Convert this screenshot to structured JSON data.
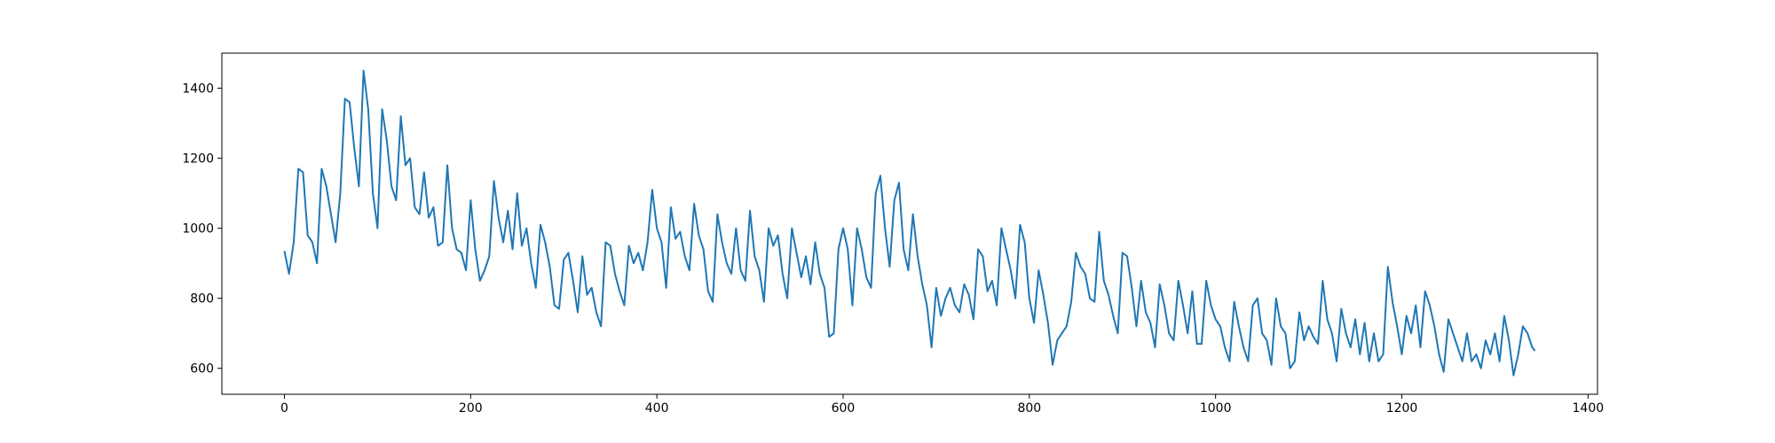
{
  "chart_data": {
    "type": "line",
    "color": "#1f77b4",
    "x": [
      0,
      5,
      10,
      15,
      20,
      25,
      30,
      35,
      40,
      45,
      50,
      55,
      60,
      65,
      70,
      75,
      80,
      85,
      90,
      95,
      100,
      105,
      110,
      115,
      120,
      125,
      130,
      135,
      140,
      145,
      150,
      155,
      160,
      165,
      170,
      175,
      180,
      185,
      190,
      195,
      200,
      205,
      210,
      215,
      220,
      225,
      230,
      235,
      240,
      245,
      250,
      255,
      260,
      265,
      270,
      275,
      280,
      285,
      290,
      295,
      300,
      305,
      310,
      315,
      320,
      325,
      330,
      335,
      340,
      345,
      350,
      355,
      360,
      365,
      370,
      375,
      380,
      385,
      390,
      395,
      400,
      405,
      410,
      415,
      420,
      425,
      430,
      435,
      440,
      445,
      450,
      455,
      460,
      465,
      470,
      475,
      480,
      485,
      490,
      495,
      500,
      505,
      510,
      515,
      520,
      525,
      530,
      535,
      540,
      545,
      550,
      555,
      560,
      565,
      570,
      575,
      580,
      585,
      590,
      595,
      600,
      605,
      610,
      615,
      620,
      625,
      630,
      635,
      640,
      645,
      650,
      655,
      660,
      665,
      670,
      675,
      680,
      685,
      690,
      695,
      700,
      705,
      710,
      715,
      720,
      725,
      730,
      735,
      740,
      745,
      750,
      755,
      760,
      765,
      770,
      775,
      780,
      785,
      790,
      795,
      800,
      805,
      810,
      815,
      820,
      825,
      830,
      835,
      840,
      845,
      850,
      855,
      860,
      865,
      870,
      875,
      880,
      885,
      890,
      895,
      900,
      905,
      910,
      915,
      920,
      925,
      930,
      935,
      940,
      945,
      950,
      955,
      960,
      965,
      970,
      975,
      980,
      985,
      990,
      995,
      1000,
      1005,
      1010,
      1015,
      1020,
      1025,
      1030,
      1035,
      1040,
      1045,
      1050,
      1055,
      1060,
      1065,
      1070,
      1075,
      1080,
      1085,
      1090,
      1095,
      1100,
      1105,
      1110,
      1115,
      1120,
      1125,
      1130,
      1135,
      1140,
      1145,
      1150,
      1155,
      1160,
      1165,
      1170,
      1175,
      1180,
      1185,
      1190,
      1195,
      1200,
      1205,
      1210,
      1215,
      1220,
      1225,
      1230,
      1235,
      1240,
      1245,
      1250,
      1255,
      1260,
      1265,
      1270,
      1275,
      1280,
      1285,
      1290,
      1295,
      1300,
      1305,
      1310,
      1315,
      1320,
      1325,
      1330,
      1335,
      1340,
      1343
    ],
    "values": [
      935,
      870,
      960,
      1170,
      1160,
      980,
      960,
      900,
      1170,
      1120,
      1040,
      960,
      1100,
      1370,
      1360,
      1230,
      1120,
      1450,
      1340,
      1100,
      1000,
      1340,
      1250,
      1120,
      1080,
      1320,
      1180,
      1200,
      1060,
      1040,
      1160,
      1030,
      1060,
      950,
      960,
      1180,
      1000,
      940,
      930,
      880,
      1080,
      940,
      850,
      880,
      920,
      1135,
      1030,
      960,
      1050,
      940,
      1100,
      950,
      1000,
      900,
      830,
      1010,
      960,
      890,
      780,
      770,
      910,
      930,
      850,
      760,
      920,
      810,
      830,
      760,
      720,
      960,
      950,
      870,
      820,
      780,
      950,
      900,
      930,
      880,
      960,
      1110,
      1000,
      960,
      830,
      1060,
      970,
      990,
      920,
      880,
      1070,
      980,
      940,
      820,
      790,
      1040,
      960,
      900,
      870,
      1000,
      880,
      850,
      1050,
      920,
      880,
      790,
      1000,
      950,
      980,
      870,
      800,
      1000,
      930,
      860,
      920,
      840,
      960,
      870,
      830,
      690,
      700,
      940,
      1000,
      940,
      780,
      1000,
      940,
      860,
      830,
      1100,
      1150,
      1000,
      890,
      1080,
      1130,
      940,
      880,
      1040,
      920,
      840,
      780,
      660,
      830,
      750,
      800,
      830,
      780,
      760,
      840,
      810,
      740,
      940,
      920,
      820,
      850,
      780,
      1000,
      940,
      880,
      800,
      1010,
      960,
      800,
      730,
      880,
      810,
      730,
      610,
      680,
      700,
      720,
      790,
      930,
      890,
      870,
      800,
      790,
      990,
      850,
      810,
      750,
      700,
      930,
      920,
      830,
      720,
      850,
      760,
      730,
      660,
      840,
      780,
      700,
      680,
      850,
      780,
      700,
      820,
      670,
      670,
      850,
      780,
      740,
      720,
      660,
      620,
      790,
      720,
      660,
      620,
      780,
      800,
      700,
      680,
      610,
      800,
      720,
      700,
      600,
      620,
      760,
      680,
      720,
      690,
      670,
      850,
      740,
      700,
      620,
      770,
      700,
      660,
      740,
      640,
      730,
      620,
      700,
      620,
      640,
      890,
      790,
      720,
      640,
      750,
      700,
      780,
      660,
      820,
      780,
      720,
      640,
      590,
      740,
      700,
      660,
      620,
      700,
      620,
      640,
      600,
      680,
      640,
      700,
      620,
      750,
      680,
      580,
      640,
      720,
      700,
      660,
      650
    ],
    "xlim": [
      -67.15,
      1410.15
    ],
    "xticks": [
      0,
      200,
      400,
      600,
      800,
      1000,
      1200,
      1400
    ],
    "ylim": [
      526,
      1500
    ],
    "yticks": [
      600,
      800,
      1000,
      1200,
      1400
    ]
  }
}
